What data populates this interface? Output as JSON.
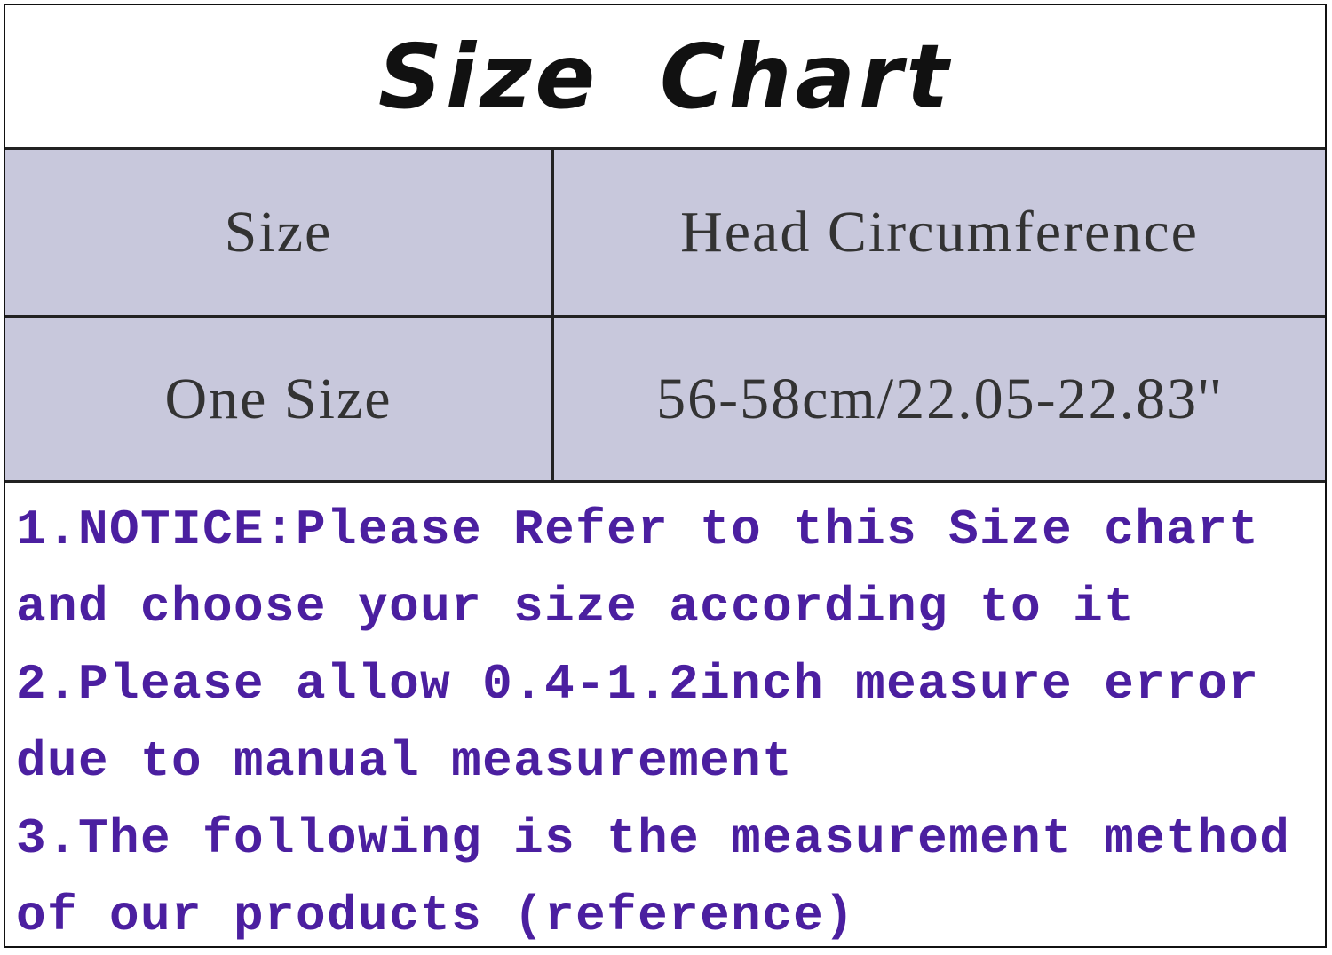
{
  "title": "Size Chart",
  "table": {
    "headers": [
      "Size",
      "Head Circumference"
    ],
    "rows": [
      [
        "One Size",
        "56-58cm/22.05-22.83''"
      ]
    ]
  },
  "notes": [
    "1.NOTICE:Please Refer to this Size chart",
    "and choose your size according to it",
    "2.Please allow 0.4-1.2inch measure error",
    "due to manual measurement",
    "3.The following is the measurement method",
    "of our products (reference)"
  ],
  "colors": {
    "cell_background": "#c8c8dc",
    "notes_text": "#4b1fa0",
    "border": "#222222"
  }
}
